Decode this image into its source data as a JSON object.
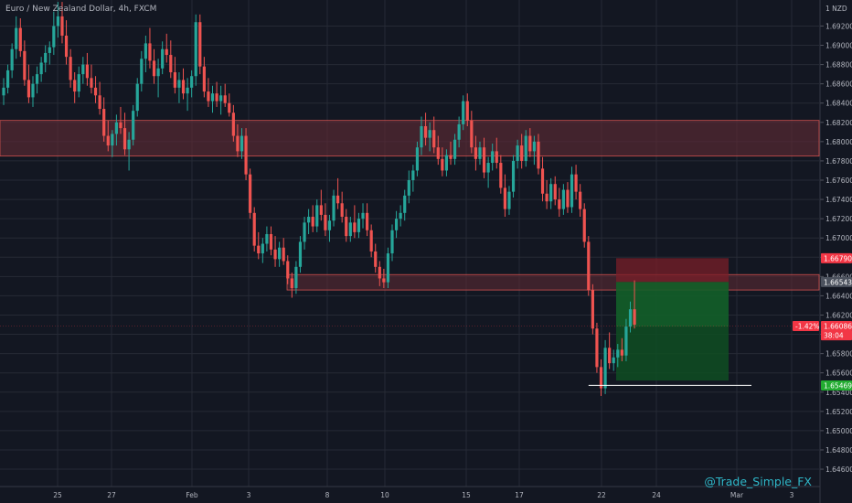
{
  "header": {
    "title": "Euro / New Zealand Dollar, 4h, FXCM"
  },
  "watermark": "@Trade_Simple_FX",
  "colors": {
    "background": "#131722",
    "grid": "#262a35",
    "bull": "#26a69a",
    "bear": "#ef5350",
    "zone_fill": "#5c2a34",
    "zone_border": "#d0504e",
    "stop_fill": "#7a1f28",
    "target_fill": "#0f4d22",
    "level_line": "#ffffff",
    "watermark": "#2fb7c8"
  },
  "chart_data": {
    "type": "candlestick",
    "title": "Euro / New Zealand Dollar, 4h, FXCM",
    "currency_label": "NZD",
    "ylim": [
      1.6442,
      1.6947
    ],
    "y_ticks": [
      1.692,
      1.69,
      1.688,
      1.686,
      1.684,
      1.682,
      1.68,
      1.678,
      1.676,
      1.674,
      1.672,
      1.67,
      1.668,
      1.666,
      1.664,
      1.662,
      1.66,
      1.658,
      1.656,
      1.654,
      1.652,
      1.65,
      1.648,
      1.646
    ],
    "x_ticks": [
      "25",
      "27",
      "Feb",
      "3",
      "8",
      "10",
      "15",
      "17",
      "22",
      "24",
      "Mar",
      "3"
    ],
    "resistance_zone": [
      1.6785,
      1.6822
    ],
    "support_zone": [
      1.6646,
      1.6662
    ],
    "position": {
      "side": "long",
      "stop_loss": 1.6679,
      "entry": 1.66543,
      "target_top": 1.6679,
      "stop_level": 1.65469
    },
    "price_labels": [
      {
        "value": "1.66790",
        "price": 1.6679,
        "color": "#f23645"
      },
      {
        "value": "1.66543",
        "price": 1.66543,
        "color": "#4c525e"
      },
      {
        "value": "1.66086",
        "price": 1.66086,
        "color": "#f23645"
      },
      {
        "value": "38:04",
        "price": 1.6599,
        "color": "#f23645"
      },
      {
        "value": "1.65469",
        "price": 1.65469,
        "color": "#22ab30"
      }
    ],
    "change_label": "-1.42%",
    "key_level": 1.6547,
    "candles_ohlc": [
      [
        1.6848,
        1.6866,
        1.6838,
        1.6856
      ],
      [
        1.6856,
        1.688,
        1.685,
        1.6874
      ],
      [
        1.6874,
        1.6902,
        1.6866,
        1.6896
      ],
      [
        1.6896,
        1.693,
        1.6886,
        1.6918
      ],
      [
        1.6918,
        1.6928,
        1.6888,
        1.6894
      ],
      [
        1.6894,
        1.6905,
        1.6858,
        1.6864
      ],
      [
        1.6864,
        1.688,
        1.684,
        1.6846
      ],
      [
        1.6846,
        1.6868,
        1.6836,
        1.686
      ],
      [
        1.686,
        1.6878,
        1.685,
        1.687
      ],
      [
        1.687,
        1.6888,
        1.6862,
        1.6882
      ],
      [
        1.6882,
        1.69,
        1.6872,
        1.6892
      ],
      [
        1.6892,
        1.6904,
        1.688,
        1.6898
      ],
      [
        1.6898,
        1.6935,
        1.689,
        1.692
      ],
      [
        1.692,
        1.6945,
        1.6908,
        1.693
      ],
      [
        1.693,
        1.6945,
        1.6902,
        1.691
      ],
      [
        1.691,
        1.6926,
        1.688,
        1.6888
      ],
      [
        1.6888,
        1.6896,
        1.6856,
        1.6864
      ],
      [
        1.6864,
        1.6872,
        1.684,
        1.6852
      ],
      [
        1.6852,
        1.6878,
        1.6846,
        1.687
      ],
      [
        1.687,
        1.6888,
        1.686,
        1.688
      ],
      [
        1.688,
        1.6892,
        1.6858,
        1.6866
      ],
      [
        1.6866,
        1.688,
        1.685,
        1.6856
      ],
      [
        1.6856,
        1.6868,
        1.684,
        1.6848
      ],
      [
        1.6848,
        1.6862,
        1.6828,
        1.6834
      ],
      [
        1.6834,
        1.6846,
        1.68,
        1.6806
      ],
      [
        1.6806,
        1.6822,
        1.679,
        1.6796
      ],
      [
        1.6796,
        1.6812,
        1.6784,
        1.6808
      ],
      [
        1.6808,
        1.6828,
        1.6796,
        1.682
      ],
      [
        1.682,
        1.6836,
        1.6808,
        1.6814
      ],
      [
        1.6814,
        1.683,
        1.6786,
        1.6792
      ],
      [
        1.6792,
        1.681,
        1.677,
        1.6802
      ],
      [
        1.6802,
        1.6838,
        1.6796,
        1.6832
      ],
      [
        1.6832,
        1.6866,
        1.6826,
        1.686
      ],
      [
        1.686,
        1.6894,
        1.6852,
        1.6886
      ],
      [
        1.6886,
        1.691,
        1.6872,
        1.6902
      ],
      [
        1.6902,
        1.6918,
        1.6876,
        1.6884
      ],
      [
        1.6884,
        1.6896,
        1.686,
        1.6868
      ],
      [
        1.6868,
        1.6886,
        1.6846,
        1.6876
      ],
      [
        1.6876,
        1.6904,
        1.687,
        1.6896
      ],
      [
        1.6896,
        1.6912,
        1.6882,
        1.689
      ],
      [
        1.689,
        1.6905,
        1.6866,
        1.6872
      ],
      [
        1.6872,
        1.6888,
        1.685,
        1.6856
      ],
      [
        1.6856,
        1.6872,
        1.684,
        1.6864
      ],
      [
        1.6864,
        1.6876,
        1.6844,
        1.685
      ],
      [
        1.685,
        1.6866,
        1.6832,
        1.6856
      ],
      [
        1.6856,
        1.6874,
        1.6846,
        1.6868
      ],
      [
        1.6868,
        1.6932,
        1.6858,
        1.6924
      ],
      [
        1.6924,
        1.6932,
        1.687,
        1.6878
      ],
      [
        1.6878,
        1.6888,
        1.6846,
        1.6852
      ],
      [
        1.6852,
        1.6866,
        1.6836,
        1.6842
      ],
      [
        1.6842,
        1.6858,
        1.683,
        1.685
      ],
      [
        1.685,
        1.6862,
        1.6836,
        1.6842
      ],
      [
        1.6842,
        1.6858,
        1.6828,
        1.6848
      ],
      [
        1.6848,
        1.686,
        1.6836,
        1.684
      ],
      [
        1.684,
        1.685,
        1.6826,
        1.683
      ],
      [
        1.683,
        1.6838,
        1.68,
        1.6806
      ],
      [
        1.6806,
        1.6818,
        1.6784,
        1.679
      ],
      [
        1.679,
        1.6814,
        1.6782,
        1.6806
      ],
      [
        1.6806,
        1.6814,
        1.676,
        1.6766
      ],
      [
        1.6766,
        1.6772,
        1.672,
        1.6726
      ],
      [
        1.6726,
        1.6732,
        1.6686,
        1.6692
      ],
      [
        1.6692,
        1.6706,
        1.6678,
        1.6684
      ],
      [
        1.6684,
        1.67,
        1.6674,
        1.6694
      ],
      [
        1.6694,
        1.6712,
        1.6686,
        1.6704
      ],
      [
        1.6704,
        1.6712,
        1.6682,
        1.6688
      ],
      [
        1.6688,
        1.6702,
        1.667,
        1.6678
      ],
      [
        1.6678,
        1.6696,
        1.667,
        1.669
      ],
      [
        1.669,
        1.67,
        1.6672,
        1.6676
      ],
      [
        1.6676,
        1.6682,
        1.6652,
        1.6658
      ],
      [
        1.6658,
        1.6664,
        1.6638,
        1.6648
      ],
      [
        1.6648,
        1.6676,
        1.6642,
        1.667
      ],
      [
        1.667,
        1.6702,
        1.6664,
        1.6696
      ],
      [
        1.6696,
        1.6722,
        1.6688,
        1.6716
      ],
      [
        1.6716,
        1.673,
        1.6704,
        1.6722
      ],
      [
        1.6722,
        1.6734,
        1.6706,
        1.6712
      ],
      [
        1.6712,
        1.674,
        1.6706,
        1.6734
      ],
      [
        1.6734,
        1.675,
        1.6718,
        1.6724
      ],
      [
        1.6724,
        1.6736,
        1.6702,
        1.6708
      ],
      [
        1.6708,
        1.6724,
        1.6696,
        1.6718
      ],
      [
        1.6718,
        1.675,
        1.6712,
        1.6744
      ],
      [
        1.6744,
        1.6762,
        1.673,
        1.6736
      ],
      [
        1.6736,
        1.6748,
        1.6716,
        1.6722
      ],
      [
        1.6722,
        1.673,
        1.6696,
        1.6702
      ],
      [
        1.6702,
        1.6722,
        1.6696,
        1.6716
      ],
      [
        1.6716,
        1.6734,
        1.67,
        1.6706
      ],
      [
        1.6706,
        1.6726,
        1.67,
        1.672
      ],
      [
        1.672,
        1.6736,
        1.671,
        1.6726
      ],
      [
        1.6726,
        1.6736,
        1.6702,
        1.6708
      ],
      [
        1.6708,
        1.6714,
        1.668,
        1.6686
      ],
      [
        1.6686,
        1.6694,
        1.6664,
        1.667
      ],
      [
        1.667,
        1.6676,
        1.665,
        1.6658
      ],
      [
        1.6658,
        1.6668,
        1.6648,
        1.6654
      ],
      [
        1.6654,
        1.669,
        1.6648,
        1.6684
      ],
      [
        1.6684,
        1.6714,
        1.6676,
        1.6708
      ],
      [
        1.6708,
        1.6728,
        1.67,
        1.672
      ],
      [
        1.672,
        1.6734,
        1.6712,
        1.6726
      ],
      [
        1.6726,
        1.675,
        1.6718,
        1.6744
      ],
      [
        1.6744,
        1.677,
        1.6736,
        1.676
      ],
      [
        1.676,
        1.6776,
        1.6748,
        1.677
      ],
      [
        1.677,
        1.68,
        1.6764,
        1.6794
      ],
      [
        1.6794,
        1.6826,
        1.6786,
        1.6816
      ],
      [
        1.6816,
        1.683,
        1.6796,
        1.6804
      ],
      [
        1.6804,
        1.682,
        1.679,
        1.6812
      ],
      [
        1.6812,
        1.6826,
        1.6788,
        1.6794
      ],
      [
        1.6794,
        1.6806,
        1.6776,
        1.6782
      ],
      [
        1.6782,
        1.6794,
        1.6764,
        1.677
      ],
      [
        1.677,
        1.6792,
        1.6764,
        1.6786
      ],
      [
        1.6786,
        1.68,
        1.6776,
        1.6782
      ],
      [
        1.6782,
        1.6808,
        1.6776,
        1.6802
      ],
      [
        1.6802,
        1.6826,
        1.6794,
        1.6818
      ],
      [
        1.6818,
        1.6848,
        1.6812,
        1.6842
      ],
      [
        1.6842,
        1.685,
        1.6816,
        1.6822
      ],
      [
        1.6822,
        1.6832,
        1.6788,
        1.6794
      ],
      [
        1.6794,
        1.6806,
        1.677,
        1.6782
      ],
      [
        1.6782,
        1.68,
        1.6776,
        1.6794
      ],
      [
        1.6794,
        1.6804,
        1.6762,
        1.6768
      ],
      [
        1.6768,
        1.6784,
        1.6752,
        1.6778
      ],
      [
        1.6778,
        1.6798,
        1.677,
        1.679
      ],
      [
        1.679,
        1.6804,
        1.6772,
        1.6778
      ],
      [
        1.6778,
        1.6786,
        1.6746,
        1.6752
      ],
      [
        1.6752,
        1.6766,
        1.6722,
        1.673
      ],
      [
        1.673,
        1.6754,
        1.6724,
        1.6748
      ],
      [
        1.6748,
        1.6786,
        1.6742,
        1.678
      ],
      [
        1.678,
        1.6802,
        1.6772,
        1.6796
      ],
      [
        1.6796,
        1.6808,
        1.6772,
        1.678
      ],
      [
        1.678,
        1.6812,
        1.6774,
        1.6806
      ],
      [
        1.6806,
        1.6814,
        1.6784,
        1.679
      ],
      [
        1.679,
        1.6806,
        1.6776,
        1.68
      ],
      [
        1.68,
        1.6808,
        1.6766,
        1.6772
      ],
      [
        1.6772,
        1.6784,
        1.6738,
        1.6746
      ],
      [
        1.6746,
        1.676,
        1.673,
        1.6738
      ],
      [
        1.6738,
        1.6762,
        1.673,
        1.6756
      ],
      [
        1.6756,
        1.6764,
        1.6734,
        1.674
      ],
      [
        1.674,
        1.6752,
        1.6722,
        1.673
      ],
      [
        1.673,
        1.6756,
        1.6724,
        1.675
      ],
      [
        1.675,
        1.6758,
        1.6726,
        1.6732
      ],
      [
        1.6732,
        1.6774,
        1.6726,
        1.6766
      ],
      [
        1.6766,
        1.6776,
        1.674,
        1.6748
      ],
      [
        1.6748,
        1.6756,
        1.6722,
        1.673
      ],
      [
        1.673,
        1.6736,
        1.669,
        1.6696
      ],
      [
        1.6696,
        1.6702,
        1.664,
        1.6646
      ],
      [
        1.6646,
        1.6652,
        1.66,
        1.6606
      ],
      [
        1.6606,
        1.6612,
        1.656,
        1.6566
      ],
      [
        1.6566,
        1.6574,
        1.6536,
        1.6544
      ],
      [
        1.6544,
        1.6594,
        1.6538,
        1.6586
      ],
      [
        1.6586,
        1.6602,
        1.6564,
        1.657
      ],
      [
        1.657,
        1.6584,
        1.6562,
        1.6576
      ],
      [
        1.6576,
        1.659,
        1.6566,
        1.6584
      ],
      [
        1.6584,
        1.6596,
        1.6572,
        1.6578
      ],
      [
        1.6578,
        1.6616,
        1.6572,
        1.6608
      ],
      [
        1.6608,
        1.6634,
        1.6602,
        1.6626
      ],
      [
        1.6626,
        1.6656,
        1.6606,
        1.661
      ]
    ]
  }
}
